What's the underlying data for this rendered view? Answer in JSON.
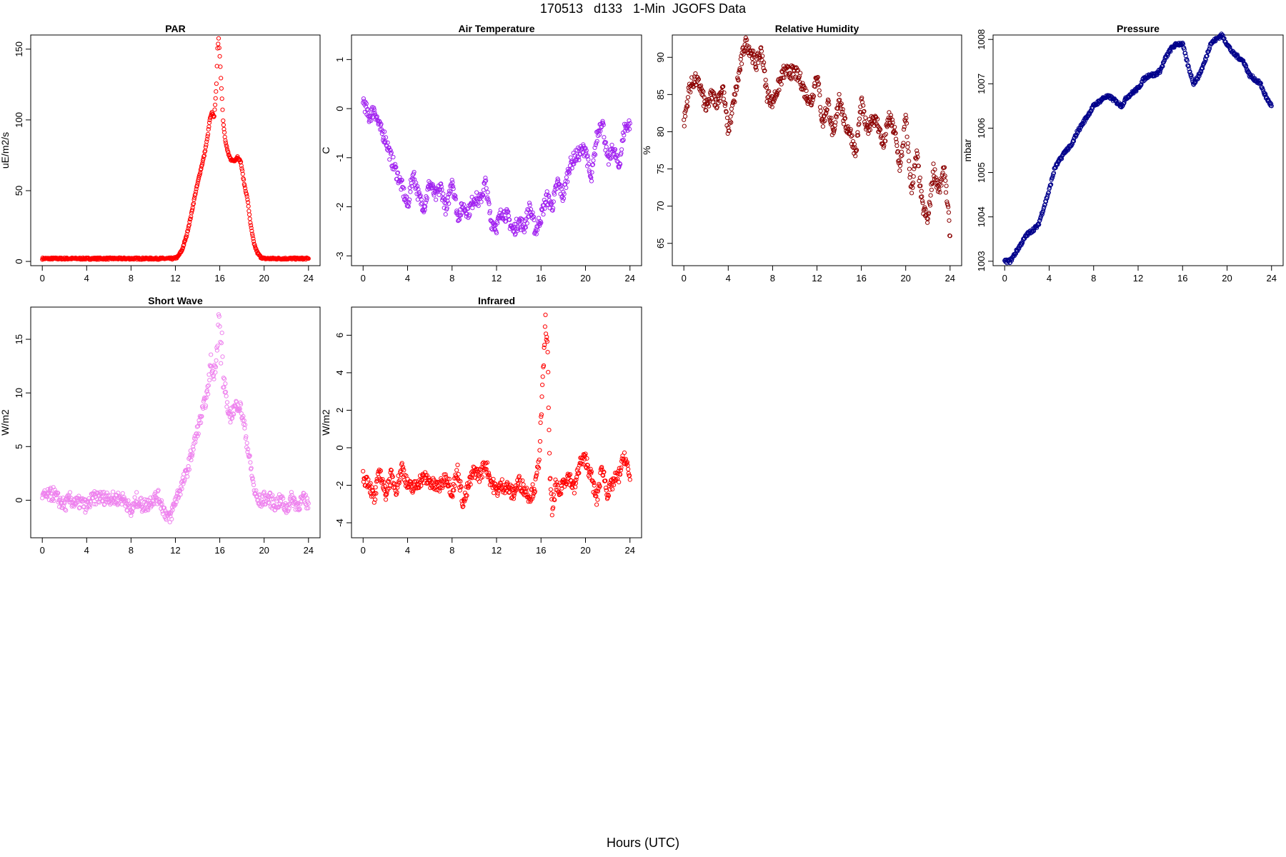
{
  "figure": {
    "title": "170513   d133   1-Min  JGOFS Data",
    "xlabel": "Hours (UTC)"
  },
  "chart_data": [
    {
      "id": "par",
      "type": "scatter",
      "title": "PAR",
      "ylabel": "uE/m2/s",
      "color": "#ff0000",
      "xlim": [
        0,
        24
      ],
      "ylim": [
        -3,
        160
      ],
      "xticks": [
        0,
        4,
        8,
        12,
        16,
        20,
        24
      ],
      "yticks": [
        0,
        50,
        100,
        150
      ],
      "series": [
        {
          "x": [
            0,
            11.8,
            12.2,
            12.6,
            13.0,
            13.4,
            13.8,
            14.2,
            14.6,
            14.9,
            15.1,
            15.3,
            15.5,
            15.7,
            15.8,
            15.9,
            16.0,
            16.1,
            16.2,
            16.3,
            16.5,
            16.8,
            17.0,
            17.3,
            17.6,
            17.9,
            18.2,
            18.5,
            18.8,
            19.1,
            19.4,
            19.7,
            20.0,
            24
          ],
          "y": [
            2,
            2,
            3,
            8,
            18,
            32,
            48,
            62,
            75,
            88,
            100,
            105,
            102,
            125,
            150,
            158,
            145,
            130,
            115,
            100,
            85,
            75,
            72,
            71,
            74,
            70,
            55,
            44,
            25,
            12,
            6,
            3,
            2,
            2
          ]
        }
      ]
    },
    {
      "id": "air-temp",
      "type": "scatter",
      "title": "Air Temperature",
      "ylabel": "C",
      "color": "#a020f0",
      "xlim": [
        0,
        24
      ],
      "ylim": [
        -3.2,
        1.5
      ],
      "xticks": [
        0,
        4,
        8,
        12,
        16,
        20,
        24
      ],
      "yticks": [
        -3,
        -2,
        -1,
        0,
        1
      ],
      "series": [
        {
          "x": [
            0,
            0.5,
            1,
            1.5,
            2,
            2.5,
            3,
            3.5,
            4,
            4.5,
            5,
            5.5,
            6,
            6.5,
            7,
            7.5,
            8,
            8.5,
            9,
            9.5,
            10,
            10.5,
            11,
            11.5,
            12,
            12.5,
            13,
            13.5,
            14,
            14.5,
            15,
            15.5,
            16,
            16.5,
            17,
            17.5,
            18,
            18.5,
            19,
            19.5,
            20,
            20.5,
            21,
            21.5,
            22,
            22.5,
            23,
            23.5,
            24
          ],
          "y": [
            0.2,
            -0.2,
            0,
            -0.4,
            -0.6,
            -1.0,
            -1.3,
            -1.6,
            -2.0,
            -1.3,
            -1.8,
            -2.0,
            -1.5,
            -1.8,
            -1.6,
            -2.1,
            -1.4,
            -2.2,
            -2.0,
            -2.1,
            -1.8,
            -1.9,
            -1.5,
            -2.3,
            -2.4,
            -2.1,
            -2.2,
            -2.5,
            -2.3,
            -2.4,
            -2.0,
            -2.5,
            -2.2,
            -1.8,
            -2.0,
            -1.5,
            -1.8,
            -1.2,
            -1.0,
            -0.9,
            -0.8,
            -1.5,
            -0.6,
            -0.2,
            -1.1,
            -0.8,
            -1.2,
            -0.4,
            -0.3
          ]
        }
      ]
    },
    {
      "id": "rel-humidity",
      "type": "scatter",
      "title": "Relative Humidity",
      "ylabel": "%",
      "color": "#8b0000",
      "xlim": [
        0,
        24
      ],
      "ylim": [
        62,
        93
      ],
      "xticks": [
        0,
        4,
        8,
        12,
        16,
        20,
        24
      ],
      "yticks": [
        65,
        70,
        75,
        80,
        85,
        90
      ],
      "series": [
        {
          "x": [
            0,
            0.5,
            1,
            1.5,
            2,
            2.5,
            3,
            3.5,
            4,
            4.5,
            5,
            5.5,
            6,
            6.5,
            7,
            7.5,
            8,
            8.5,
            9,
            9.5,
            10,
            10.5,
            11,
            11.5,
            12,
            12.5,
            13,
            13.5,
            14,
            14.5,
            15,
            15.5,
            16,
            16.5,
            17,
            17.5,
            18,
            18.5,
            19,
            19.5,
            20,
            20.5,
            21,
            21.5,
            22,
            22.5,
            23,
            23.5,
            24
          ],
          "y": [
            81,
            86,
            87,
            86,
            83,
            85,
            84,
            86,
            80,
            84,
            88,
            92,
            91,
            89,
            91,
            85,
            84,
            86,
            88,
            88,
            88,
            87,
            85,
            84,
            88,
            81,
            84,
            79,
            85,
            81,
            80,
            77,
            84,
            80,
            82,
            81,
            78,
            82,
            80,
            75,
            82,
            72,
            77,
            70,
            68,
            75,
            72,
            75,
            66
          ]
        }
      ]
    },
    {
      "id": "pressure",
      "type": "scatter",
      "title": "Pressure",
      "ylabel": "mbar",
      "color": "#00008b",
      "xlim": [
        0,
        24
      ],
      "ylim": [
        1002.9,
        1008.1
      ],
      "xticks": [
        0,
        4,
        8,
        12,
        16,
        20,
        24
      ],
      "yticks": [
        1003,
        1004,
        1005,
        1006,
        1007,
        1008
      ],
      "series": [
        {
          "x": [
            0,
            0.5,
            1,
            1.5,
            2,
            2.5,
            3,
            3.5,
            4,
            4.5,
            5,
            5.5,
            6,
            6.5,
            7,
            7.5,
            8,
            8.5,
            9,
            9.5,
            10,
            10.5,
            11,
            11.5,
            12,
            12.5,
            13,
            13.5,
            14,
            14.5,
            15,
            15.5,
            16,
            16.5,
            17,
            17.5,
            18,
            18.5,
            19,
            19.5,
            20,
            20.5,
            21,
            21.5,
            22,
            22.5,
            23,
            23.5,
            24
          ],
          "y": [
            1003.0,
            1003.0,
            1003.2,
            1003.4,
            1003.6,
            1003.7,
            1003.8,
            1004.2,
            1004.6,
            1005.1,
            1005.3,
            1005.5,
            1005.6,
            1005.9,
            1006.1,
            1006.3,
            1006.5,
            1006.6,
            1006.7,
            1006.7,
            1006.6,
            1006.5,
            1006.7,
            1006.8,
            1006.9,
            1007.1,
            1007.2,
            1007.2,
            1007.3,
            1007.6,
            1007.8,
            1007.9,
            1007.9,
            1007.4,
            1007.0,
            1007.2,
            1007.5,
            1007.9,
            1008.0,
            1008.1,
            1007.9,
            1007.7,
            1007.6,
            1007.5,
            1007.2,
            1007.1,
            1007.0,
            1006.7,
            1006.5
          ]
        }
      ]
    },
    {
      "id": "short-wave",
      "type": "scatter",
      "title": "Short Wave",
      "ylabel": "W/m2",
      "color": "#ee82ee",
      "xlim": [
        0,
        24
      ],
      "ylim": [
        -3.5,
        18
      ],
      "xticks": [
        0,
        4,
        8,
        12,
        16,
        20,
        24
      ],
      "yticks": [
        0,
        5,
        10,
        15
      ],
      "series": [
        {
          "x": [
            0,
            0.5,
            1,
            1.5,
            2,
            2.5,
            3,
            3.5,
            4,
            4.5,
            5,
            5.5,
            6,
            6.5,
            7,
            7.5,
            8,
            8.5,
            9,
            9.5,
            10,
            10.5,
            11,
            11.5,
            12,
            12.5,
            13,
            13.5,
            14,
            14.5,
            14.9,
            15.2,
            15.4,
            15.6,
            15.8,
            15.9,
            16.0,
            16.1,
            16.2,
            16.3,
            16.5,
            16.8,
            17.0,
            17.3,
            17.6,
            17.9,
            18.2,
            18.5,
            18.8,
            19.1,
            19.4,
            19.7,
            20,
            20.5,
            21,
            21.5,
            22,
            22.5,
            23,
            23.5,
            24
          ],
          "y": [
            0.3,
            0.4,
            0.6,
            0.0,
            -0.5,
            0.1,
            -0.3,
            -0.2,
            -0.6,
            0.1,
            0.3,
            0.2,
            0.3,
            0.1,
            0.2,
            0.0,
            -1.2,
            0.1,
            -0.5,
            -0.4,
            0.2,
            0.3,
            -1.0,
            -1.8,
            0.0,
            1.2,
            2.5,
            4.5,
            6.5,
            8.5,
            10.0,
            13.0,
            11.5,
            12.5,
            15.0,
            17.5,
            16.0,
            13.0,
            15.5,
            11.0,
            10.5,
            7.5,
            8.0,
            8.5,
            9.0,
            8.5,
            7.0,
            5.0,
            3.0,
            1.0,
            0.0,
            -0.1,
            0.2,
            0.1,
            -0.4,
            0.0,
            -0.8,
            0.2,
            -0.5,
            0.1,
            -0.3
          ]
        }
      ]
    },
    {
      "id": "infrared",
      "type": "scatter",
      "title": "Infrared",
      "ylabel": "W/m2",
      "color": "#ff0000",
      "xlim": [
        0,
        24
      ],
      "ylim": [
        -4.8,
        7.5
      ],
      "xticks": [
        0,
        4,
        8,
        12,
        16,
        20,
        24
      ],
      "yticks": [
        -4,
        -2,
        0,
        2,
        4,
        6
      ],
      "series": [
        {
          "x": [
            0,
            0.5,
            1,
            1.5,
            2,
            2.5,
            3,
            3.5,
            4,
            4.5,
            5,
            5.5,
            6,
            6.5,
            7,
            7.5,
            8,
            8.5,
            9,
            9.5,
            10,
            10.5,
            11,
            11.5,
            12,
            12.5,
            13,
            13.5,
            14,
            14.5,
            15,
            15.5,
            15.8,
            16.0,
            16.2,
            16.4,
            16.6,
            16.8,
            17.0,
            17.3,
            17.6,
            18,
            18.5,
            19,
            19.5,
            20,
            20.5,
            21,
            21.5,
            22,
            22.5,
            23,
            23.5,
            24
          ],
          "y": [
            -1.6,
            -1.8,
            -2.8,
            -1.2,
            -2.5,
            -1.5,
            -2.2,
            -1.0,
            -2.0,
            -2.2,
            -1.8,
            -1.6,
            -1.8,
            -2.1,
            -2.0,
            -1.5,
            -2.4,
            -1.2,
            -3.0,
            -2.0,
            -1.2,
            -1.5,
            -0.8,
            -1.8,
            -2.3,
            -2.0,
            -2.1,
            -2.5,
            -1.8,
            -2.2,
            -2.6,
            -2.0,
            -0.8,
            1.5,
            4.0,
            6.8,
            5.0,
            -1.5,
            -3.5,
            -2.0,
            -2.5,
            -1.8,
            -1.5,
            -2.2,
            -0.8,
            -0.6,
            -1.5,
            -2.8,
            -1.0,
            -2.5,
            -1.8,
            -1.5,
            -0.4,
            -1.7
          ]
        }
      ]
    }
  ]
}
